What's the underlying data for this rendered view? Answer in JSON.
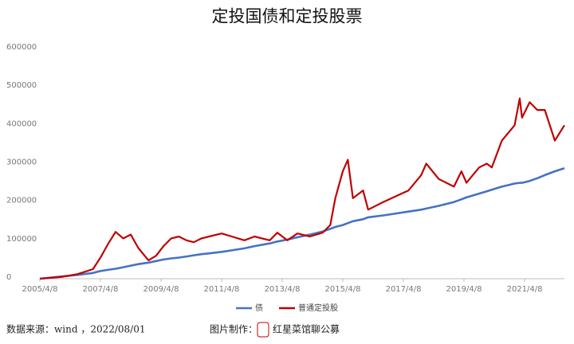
{
  "chart_data": {
    "type": "line",
    "title": "定投国债和定投股票",
    "x": [
      "2005/4/8",
      "2006/1/8",
      "2006/7/8",
      "2007/1/8",
      "2007/4/8",
      "2007/7/8",
      "2007/10/8",
      "2008/1/8",
      "2008/4/8",
      "2008/7/8",
      "2008/11/8",
      "2009/2/8",
      "2009/5/8",
      "2009/8/8",
      "2009/11/8",
      "2010/2/8",
      "2010/5/8",
      "2010/8/8",
      "2010/11/8",
      "2011/4/8",
      "2011/8/8",
      "2012/1/8",
      "2012/5/8",
      "2012/11/8",
      "2013/2/8",
      "2013/6/8",
      "2013/10/8",
      "2014/3/8",
      "2014/8/8",
      "2014/11/8",
      "2015/1/8",
      "2015/4/8",
      "2015/6/8",
      "2015/8/8",
      "2015/12/8",
      "2016/2/8",
      "2016/8/8",
      "2017/1/8",
      "2017/6/8",
      "2017/11/8",
      "2018/1/8",
      "2018/6/8",
      "2018/12/8",
      "2019/3/8",
      "2019/5/8",
      "2019/10/8",
      "2020/1/8",
      "2020/3/8",
      "2020/7/8",
      "2020/12/8",
      "2021/2/8",
      "2021/3/8",
      "2021/6/8",
      "2021/9/8",
      "2021/12/8",
      "2022/4/8",
      "2022/8/1"
    ],
    "series": [
      {
        "name": "债",
        "color": "#4472c4",
        "values": [
          0,
          6000,
          10000,
          15000,
          20000,
          23000,
          26000,
          30000,
          34000,
          38000,
          42000,
          46000,
          50000,
          53000,
          55000,
          58000,
          61000,
          64000,
          66000,
          70000,
          74000,
          79000,
          85000,
          92000,
          97000,
          102000,
          108000,
          115000,
          123000,
          130000,
          135000,
          140000,
          145000,
          150000,
          155000,
          160000,
          165000,
          170000,
          175000,
          180000,
          183000,
          190000,
          200000,
          207000,
          212000,
          222000,
          228000,
          232000,
          240000,
          248000,
          250000,
          250000,
          255000,
          262000,
          270000,
          280000,
          288000
        ]
      },
      {
        "name": "普通定投股",
        "color": "#c00000",
        "values": [
          0,
          5000,
          12000,
          25000,
          55000,
          90000,
          122000,
          105000,
          115000,
          80000,
          48000,
          60000,
          85000,
          105000,
          110000,
          100000,
          95000,
          105000,
          110000,
          118000,
          110000,
          100000,
          110000,
          100000,
          120000,
          100000,
          118000,
          110000,
          120000,
          140000,
          210000,
          280000,
          310000,
          210000,
          230000,
          180000,
          200000,
          215000,
          230000,
          270000,
          300000,
          260000,
          240000,
          280000,
          250000,
          290000,
          300000,
          290000,
          360000,
          400000,
          470000,
          420000,
          460000,
          440000,
          440000,
          360000,
          400000
        ]
      }
    ],
    "xlim": [
      "2005/4/8",
      "2022/8/1"
    ],
    "xticks": [
      "2005/4/8",
      "2007/4/8",
      "2009/4/8",
      "2011/4/8",
      "2013/4/8",
      "2015/4/8",
      "2017/4/8",
      "2019/4/8",
      "2021/4/8"
    ],
    "ylim": [
      0,
      600000
    ],
    "yticks": [
      0,
      100000,
      200000,
      300000,
      400000,
      500000,
      600000
    ],
    "grid": false,
    "legend": "bottom",
    "source": "数据来源：wind ，2022/08/01",
    "maker_label": "图片制作：",
    "maker": "红星菜馆聊公募"
  }
}
